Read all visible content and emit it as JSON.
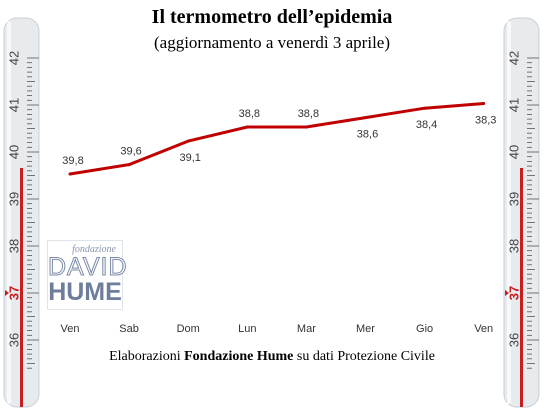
{
  "header": {
    "title": "Il termometro dell’epidemia",
    "subtitle": "(aggiornamento a venerdì 3 aprile)"
  },
  "thermometer": {
    "ticks": [
      "42",
      "41",
      "40",
      "39",
      "38",
      "37",
      "36"
    ],
    "marker_label": "37",
    "tube_color": "#e8ebee",
    "mercury_color": "#c81e1e"
  },
  "logo": {
    "line1": "fondazione",
    "line2": "DAVID",
    "line3": "HUME"
  },
  "source": {
    "prefix": "Elaborazioni ",
    "bold": "Fondazione Hume",
    "suffix": " su dati Protezione Civile"
  },
  "chart_data": {
    "type": "line",
    "categories": [
      "Ven",
      "Sab",
      "Dom",
      "Lun",
      "Mar",
      "Mer",
      "Gio",
      "Ven"
    ],
    "series": [
      {
        "values": [
          39.8,
          39.6,
          39.1,
          38.8,
          38.8,
          38.6,
          38.4,
          38.3
        ],
        "labels": [
          "39,8",
          "39,6",
          "39,1",
          "38,8",
          "38,8",
          "38,6",
          "38,4",
          "38,3"
        ],
        "color": "#c00000"
      }
    ],
    "xlabel": "",
    "ylabel": "",
    "grid": false,
    "legend": "none"
  }
}
